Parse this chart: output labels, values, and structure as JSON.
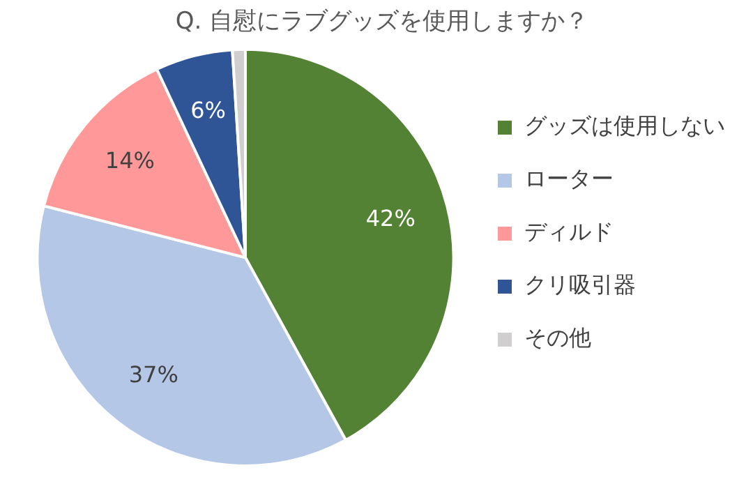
{
  "chart_data": {
    "type": "pie",
    "title": "Q. 自慰にラブグッズを使用しますか？",
    "categories": [
      "グッズは使用しない",
      "ローター",
      "ディルド",
      "クリ吸引器",
      "その他"
    ],
    "values": [
      42,
      37,
      14,
      6,
      1
    ],
    "colors": [
      "#548235",
      "#b4c7e7",
      "#ff9999",
      "#2f5597",
      "#d0cece"
    ],
    "value_labels": [
      "42%",
      "37%",
      "14%",
      "6%",
      null
    ],
    "legend": "right"
  }
}
